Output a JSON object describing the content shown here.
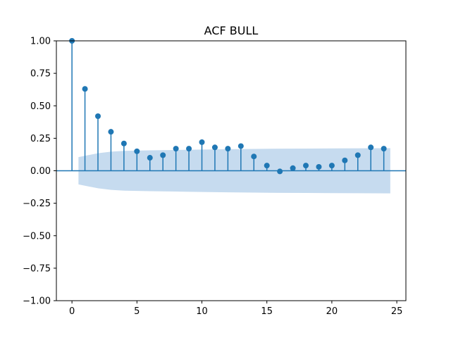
{
  "chart_data": {
    "type": "scatter",
    "title": "ACF BULL",
    "xlabel": "",
    "ylabel": "",
    "xlim": [
      -1.2,
      25.7
    ],
    "ylim": [
      -1.0,
      1.0
    ],
    "xticks": [
      0,
      5,
      10,
      15,
      20,
      25
    ],
    "yticks": [
      -1.0,
      -0.75,
      -0.5,
      -0.25,
      0.0,
      0.25,
      0.5,
      0.75,
      1.0
    ],
    "xtick_labels": [
      "0",
      "5",
      "10",
      "15",
      "20",
      "25"
    ],
    "ytick_labels": [
      "−1.00",
      "−0.75",
      "−0.50",
      "−0.25",
      "0.00",
      "0.25",
      "0.50",
      "0.75",
      "1.00"
    ],
    "grid": false,
    "legend": "none",
    "colors": {
      "marker": "#1f77b4",
      "confidence_band": "#c6dbef",
      "axes": "#000000"
    },
    "series": [
      {
        "lags": [
          0,
          1,
          2,
          3,
          4,
          5,
          6,
          7,
          8,
          9,
          10,
          11,
          12,
          13,
          14,
          15,
          16,
          17,
          18,
          19,
          20,
          21,
          22,
          23,
          24
        ],
        "values": [
          1.0,
          0.63,
          0.42,
          0.3,
          0.21,
          0.15,
          0.1,
          0.12,
          0.17,
          0.17,
          0.22,
          0.18,
          0.17,
          0.19,
          0.11,
          0.04,
          -0.005,
          0.02,
          0.04,
          0.03,
          0.04,
          0.08,
          0.12,
          0.18,
          0.17
        ]
      }
    ],
    "confidence_band": {
      "x": [
        0.5,
        1,
        2,
        3,
        4,
        5,
        6,
        8,
        10,
        12,
        14,
        16,
        18,
        20,
        22,
        24.5
      ],
      "upper": [
        0.105,
        0.115,
        0.135,
        0.147,
        0.153,
        0.155,
        0.157,
        0.16,
        0.163,
        0.166,
        0.168,
        0.17,
        0.171,
        0.172,
        0.173,
        0.174
      ],
      "lower": [
        -0.105,
        -0.115,
        -0.135,
        -0.147,
        -0.153,
        -0.155,
        -0.157,
        -0.16,
        -0.163,
        -0.166,
        -0.168,
        -0.17,
        -0.171,
        -0.172,
        -0.173,
        -0.174
      ]
    }
  }
}
